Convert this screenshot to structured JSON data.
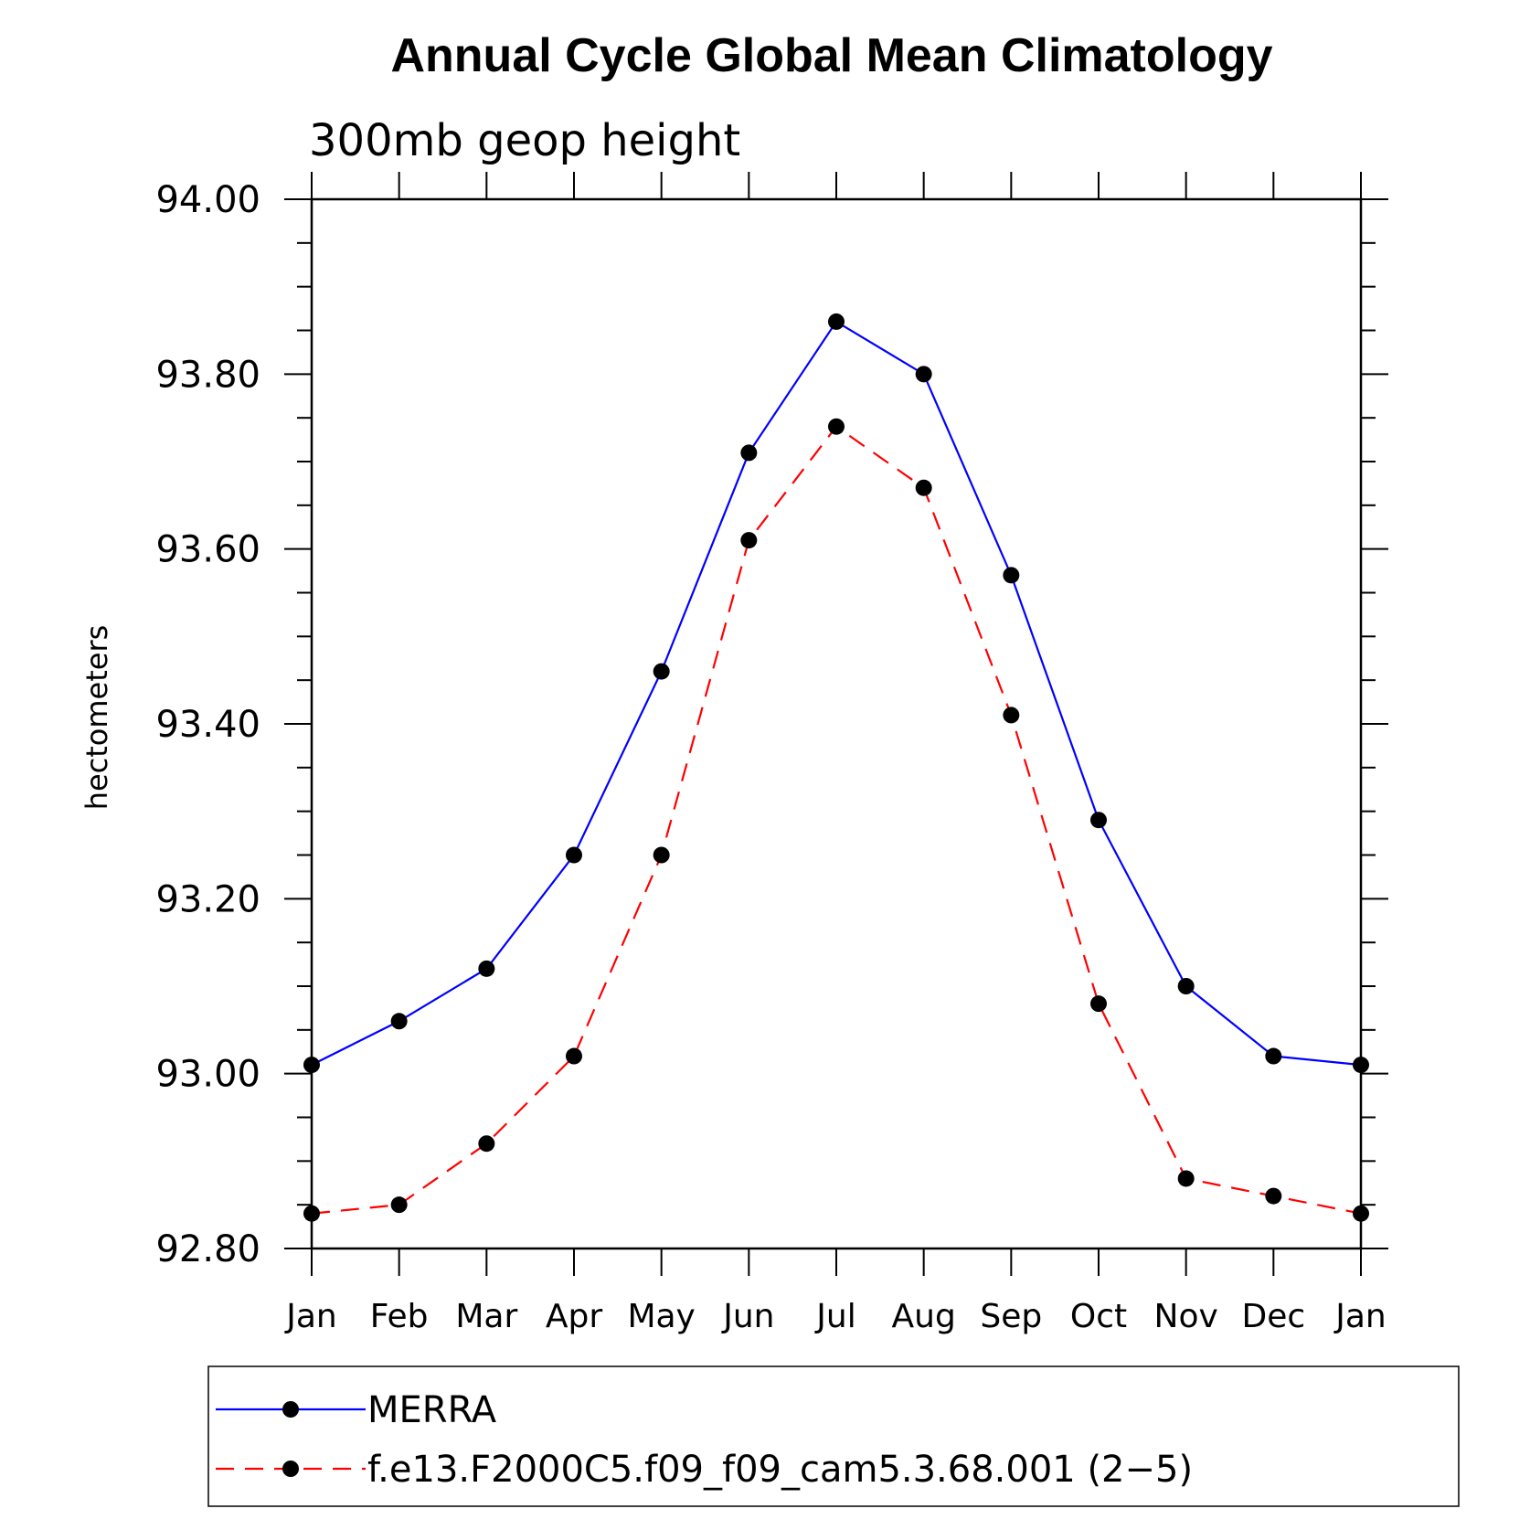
{
  "chart_data": {
    "type": "line",
    "title": "Annual Cycle Global Mean Climatology",
    "subtitle": "300mb geop height",
    "xlabel": "",
    "ylabel": "hectometers",
    "categories": [
      "Jan",
      "Feb",
      "Mar",
      "Apr",
      "May",
      "Jun",
      "Jul",
      "Aug",
      "Sep",
      "Oct",
      "Nov",
      "Dec",
      "Jan"
    ],
    "ylim": [
      92.8,
      94.0
    ],
    "yticks": [
      "92.80",
      "93.00",
      "93.20",
      "93.40",
      "93.60",
      "93.80",
      "94.00"
    ],
    "ytick_values": [
      92.8,
      93.0,
      93.2,
      93.4,
      93.6,
      93.8,
      94.0
    ],
    "grid": false,
    "legend_position": "bottom",
    "series": [
      {
        "name": "MERRA",
        "color": "#0000ff",
        "dashed": false,
        "values": [
          93.01,
          93.06,
          93.12,
          93.25,
          93.46,
          93.71,
          93.86,
          93.8,
          93.57,
          93.29,
          93.1,
          93.02,
          93.01
        ]
      },
      {
        "name": "f.e13.F2000C5.f09_f09_cam5.3.68.001 (2−5)",
        "color": "#ff0000",
        "dashed": true,
        "values": [
          92.84,
          92.85,
          92.92,
          93.02,
          93.25,
          93.61,
          93.74,
          93.67,
          93.41,
          93.08,
          92.88,
          92.86,
          92.84
        ]
      }
    ]
  }
}
